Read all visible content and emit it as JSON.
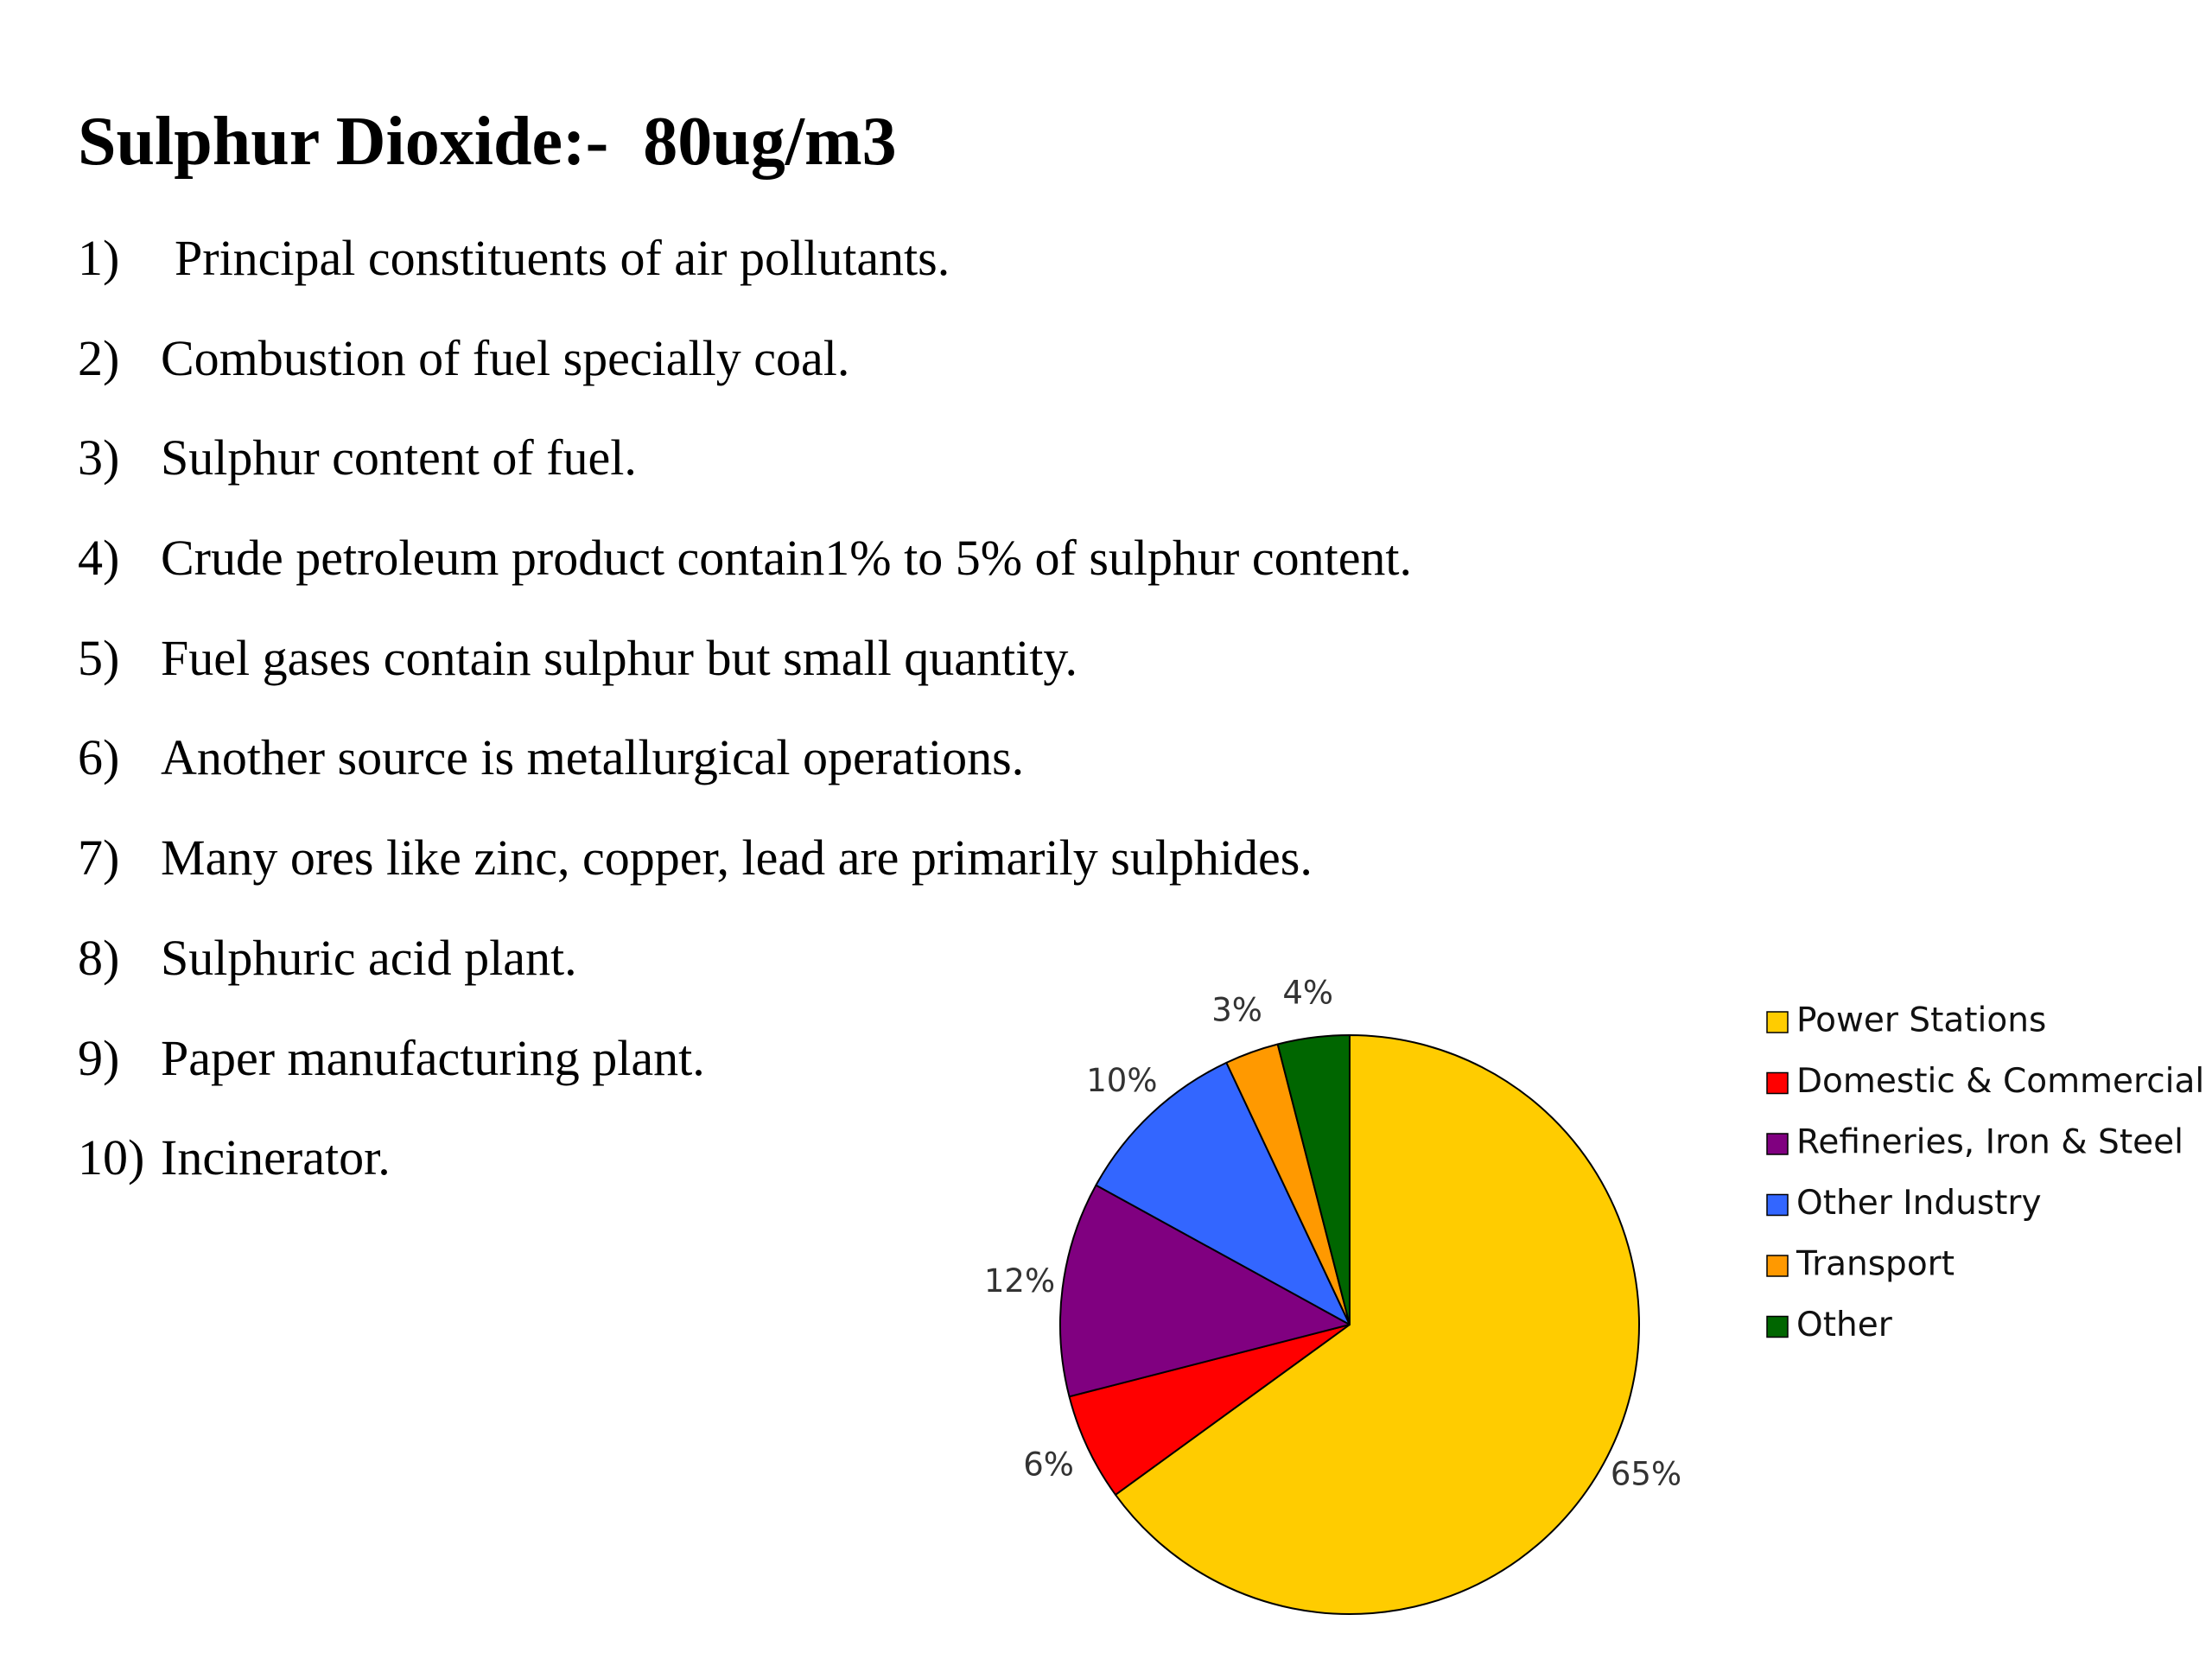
{
  "slide": {
    "title": "Sulphur Dioxide:-  80ug/m3",
    "points": [
      {
        "num": "1)",
        "text": "Principal constituents of air pollutants."
      },
      {
        "num": "2)",
        "text": "Combustion of fuel specially coal."
      },
      {
        "num": "3)",
        "text": "Sulphur content of fuel."
      },
      {
        "num": "4)",
        "text": "Crude petroleum product contain1% to 5% of sulphur content."
      },
      {
        "num": "5)",
        "text": "Fuel gases contain sulphur but small quantity."
      },
      {
        "num": "6)",
        "text": "Another source is metallurgical operations."
      },
      {
        "num": "7)",
        "text": "Many ores like zinc, copper, lead are primarily sulphides."
      },
      {
        "num": "8)",
        "text": "Sulphuric acid plant."
      },
      {
        "num": "9)",
        "text": "Paper manufacturing plant."
      },
      {
        "num": "10)",
        "text": "Incinerator."
      }
    ]
  },
  "chart_data": {
    "type": "pie",
    "title": "",
    "categories": [
      "Power Stations",
      "Domestic & Commercial",
      "Refineries, Iron & Steel",
      "Other Industry",
      "Transport",
      "Other"
    ],
    "values": [
      65,
      6,
      12,
      10,
      3,
      4
    ],
    "labels": [
      "65%",
      "6%",
      "12%",
      "10%",
      "3%",
      "4%"
    ],
    "colors": [
      "#FFCC00",
      "#FF0000",
      "#800080",
      "#3366FF",
      "#FF9900",
      "#006600"
    ],
    "start": "12 o'clock, clockwise",
    "legend": "right"
  }
}
